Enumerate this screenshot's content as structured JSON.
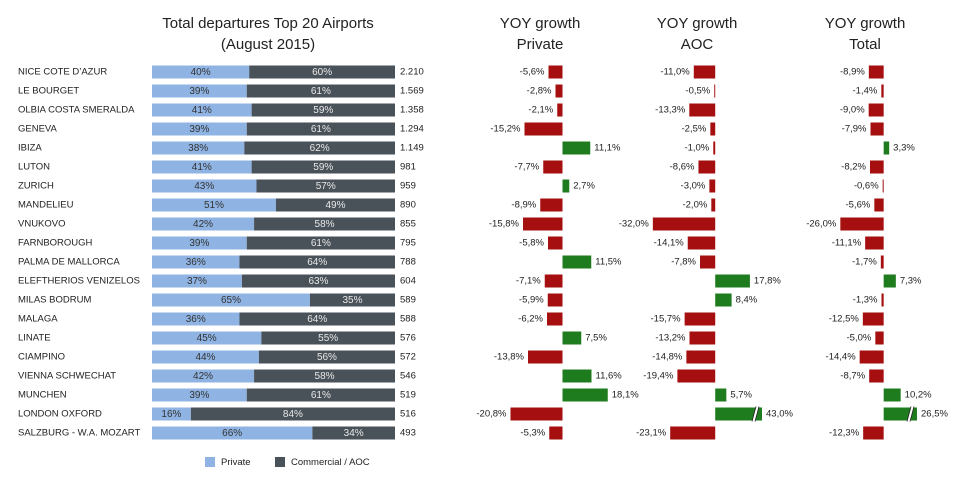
{
  "chart_data": [
    {
      "type": "bar",
      "orientation": "horizontal",
      "stacked": true,
      "title": "Total departures Top 20 Airports",
      "subtitle": "(August 2015)",
      "categories": [
        "NICE COTE D’AZUR",
        "LE BOURGET",
        "OLBIA COSTA SMERALDA",
        "GENEVA",
        "IBIZA",
        "LUTON",
        "ZURICH",
        "MANDELIEU",
        "VNUKOVO",
        "FARNBOROUGH",
        "PALMA DE MALLORCA",
        "ELEFTHERIOS VENIZELOS",
        "MILAS BODRUM",
        "MALAGA",
        "LINATE",
        "CIAMPINO",
        "VIENNA SCHWECHAT",
        "MUNCHEN",
        "LONDON OXFORD",
        "SALZBURG - W.A. MOZART"
      ],
      "series": [
        {
          "name": "Private",
          "color": "#8fb4e3",
          "label_color": "#333333",
          "values": [
            40,
            39,
            41,
            39,
            38,
            41,
            43,
            51,
            42,
            39,
            36,
            37,
            65,
            36,
            45,
            44,
            42,
            39,
            16,
            66
          ],
          "value_labels": [
            "40%",
            "39%",
            "41%",
            "39%",
            "38%",
            "41%",
            "43%",
            "51%",
            "42%",
            "39%",
            "36%",
            "37%",
            "65%",
            "36%",
            "45%",
            "44%",
            "42%",
            "39%",
            "16%",
            "66%"
          ]
        },
        {
          "name": "Commercial / AOC",
          "color": "#4a5259",
          "label_color": "#e8e8e8",
          "values": [
            60,
            61,
            59,
            61,
            62,
            59,
            57,
            49,
            58,
            61,
            64,
            63,
            35,
            64,
            55,
            56,
            58,
            61,
            84,
            34
          ],
          "value_labels": [
            "60%",
            "61%",
            "59%",
            "61%",
            "62%",
            "59%",
            "57%",
            "49%",
            "58%",
            "61%",
            "64%",
            "63%",
            "35%",
            "64%",
            "55%",
            "56%",
            "58%",
            "61%",
            "84%",
            "34%"
          ]
        }
      ],
      "totals": {
        "values": [
          2210,
          1569,
          1358,
          1294,
          1149,
          981,
          959,
          890,
          855,
          795,
          788,
          604,
          589,
          588,
          576,
          572,
          546,
          519,
          516,
          493
        ],
        "value_labels": [
          "2.210",
          "1.569",
          "1.358",
          "1.294",
          "1.149",
          "981",
          "959",
          "890",
          "855",
          "795",
          "788",
          "604",
          "589",
          "588",
          "576",
          "572",
          "546",
          "519",
          "516",
          "493"
        ]
      },
      "xlim": [
        0,
        100
      ]
    },
    {
      "type": "bar",
      "orientation": "horizontal",
      "title": "YOY growth",
      "subtitle": "Private",
      "positive_color": "#1e7b1e",
      "negative_color": "#a50f0f",
      "values": [
        -5.6,
        -2.8,
        -2.1,
        -15.2,
        11.1,
        -7.7,
        2.7,
        -8.9,
        -15.8,
        -5.8,
        11.5,
        -7.1,
        -5.9,
        -6.2,
        7.5,
        -13.8,
        11.6,
        18.1,
        -20.8,
        -5.3
      ],
      "value_labels": [
        "-5,6%",
        "-2,8%",
        "-2,1%",
        "-15,2%",
        "11,1%",
        "-7,7%",
        "2,7%",
        "-8,9%",
        "-15,8%",
        "-5,8%",
        "11,5%",
        "-7,1%",
        "-5,9%",
        "-6,2%",
        "7,5%",
        "-13,8%",
        "11,6%",
        "18,1%",
        "-20,8%",
        "-5,3%"
      ],
      "xlim": [
        -25,
        22
      ]
    },
    {
      "type": "bar",
      "orientation": "horizontal",
      "title": "YOY growth",
      "subtitle": "AOC",
      "positive_color": "#1e7b1e",
      "negative_color": "#a50f0f",
      "values": [
        -11.0,
        -0.5,
        -13.3,
        -2.5,
        -1.0,
        -8.6,
        -3.0,
        -2.0,
        -32.0,
        -14.1,
        -7.8,
        17.8,
        8.4,
        -15.7,
        -13.2,
        -14.8,
        -19.4,
        5.7,
        43.0,
        -23.1
      ],
      "value_labels": [
        "-11,0%",
        "-0,5%",
        "-13,3%",
        "-2,5%",
        "-1,0%",
        "-8,6%",
        "-3,0%",
        "-2,0%",
        "-32,0%",
        "-14,1%",
        "-7,8%",
        "17,8%",
        "8,4%",
        "-15,7%",
        "-13,2%",
        "-14,8%",
        "-19,4%",
        "5,7%",
        "43,0%",
        "-23,1%"
      ],
      "xlim": [
        -35,
        24
      ]
    },
    {
      "type": "bar",
      "orientation": "horizontal",
      "title": "YOY growth",
      "subtitle": "Total",
      "positive_color": "#1e7b1e",
      "negative_color": "#a50f0f",
      "values": [
        -8.9,
        -1.4,
        -9.0,
        -7.9,
        3.3,
        -8.2,
        -0.6,
        -5.6,
        -26.0,
        -11.1,
        -1.7,
        7.3,
        -1.3,
        -12.5,
        -5.0,
        -14.4,
        -8.7,
        10.2,
        26.5,
        -12.3
      ],
      "value_labels": [
        "-8,9%",
        "-1,4%",
        "-9,0%",
        "-7,9%",
        "3,3%",
        "-8,2%",
        "-0,6%",
        "-5,6%",
        "-26,0%",
        "-11,1%",
        "-1,7%",
        "7,3%",
        "-1,3%",
        "-12,5%",
        "-5,0%",
        "-14,4%",
        "-8,7%",
        "10,2%",
        "26,5%",
        "-12,3%"
      ],
      "xlim": [
        -28,
        20
      ]
    }
  ]
}
